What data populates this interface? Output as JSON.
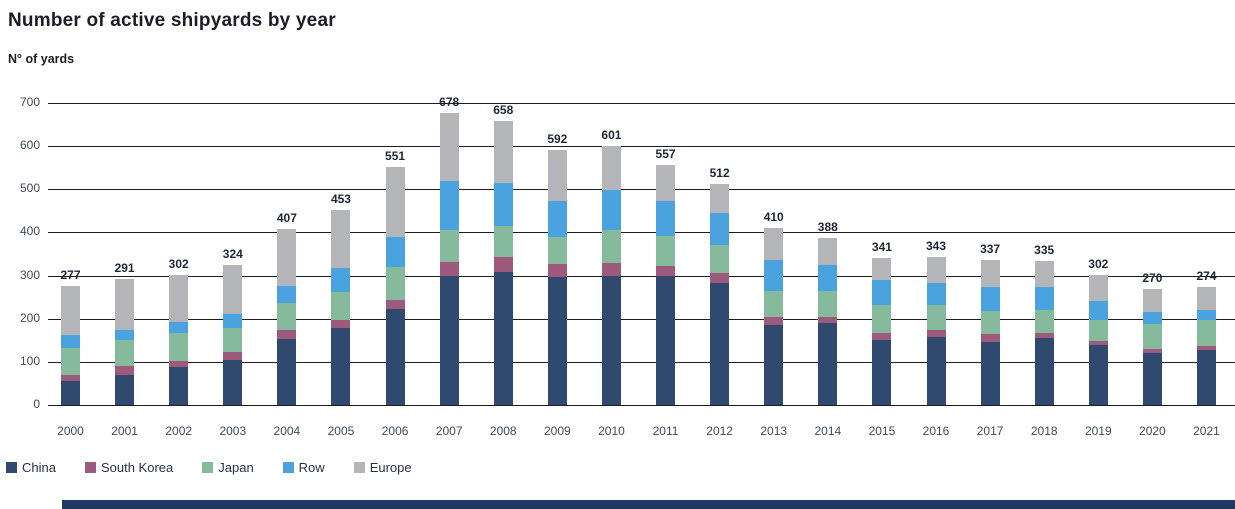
{
  "header": {
    "title": "Number of active shipyards by year",
    "y_axis_label": "N° of yards"
  },
  "colors": {
    "china": "#2f4a6e",
    "south_korea": "#9e5a7d",
    "japan": "#85bb9c",
    "row": "#4aa3de",
    "europe": "#b3b5b8",
    "gridline": "#1c1c1c",
    "footer_band": "#1f3864",
    "label_dark": "#1d2636",
    "tick_text": "#3f4a5c"
  },
  "chart_data": {
    "type": "bar",
    "stacked": true,
    "title": "Number of active shipyards by year",
    "ylabel": "N° of yards",
    "xlabel": "",
    "grid": true,
    "legend_position": "bottom",
    "ylim": [
      0,
      700
    ],
    "yticks": [
      0,
      100,
      200,
      300,
      400,
      500,
      600,
      700
    ],
    "categories": [
      "2000",
      "2001",
      "2002",
      "2003",
      "2004",
      "2005",
      "2006",
      "2007",
      "2008",
      "2009",
      "2010",
      "2011",
      "2012",
      "2013",
      "2014",
      "2015",
      "2016",
      "2017",
      "2018",
      "2019",
      "2020",
      "2021"
    ],
    "series": [
      {
        "name": "China",
        "color": "#2f4a6e",
        "values": [
          55,
          70,
          88,
          105,
          152,
          178,
          222,
          300,
          308,
          297,
          300,
          300,
          283,
          185,
          190,
          150,
          158,
          145,
          155,
          138,
          120,
          127
        ]
      },
      {
        "name": "South Korea",
        "color": "#9e5a7d",
        "values": [
          15,
          20,
          13,
          17,
          21,
          20,
          21,
          32,
          34,
          29,
          30,
          22,
          22,
          18,
          14,
          18,
          15,
          20,
          11,
          10,
          9,
          10
        ]
      },
      {
        "name": "Japan",
        "color": "#85bb9c",
        "values": [
          62,
          60,
          66,
          57,
          64,
          64,
          76,
          74,
          72,
          64,
          76,
          70,
          67,
          62,
          60,
          63,
          60,
          52,
          55,
          48,
          59,
          60
        ]
      },
      {
        "name": "Row",
        "color": "#4aa3de",
        "values": [
          30,
          23,
          26,
          32,
          39,
          55,
          70,
          113,
          101,
          82,
          92,
          80,
          74,
          72,
          60,
          58,
          49,
          56,
          53,
          44,
          27,
          23
        ]
      },
      {
        "name": "Europe",
        "color": "#b3b5b8",
        "values": [
          115,
          118,
          109,
          113,
          131,
          136,
          162,
          159,
          143,
          120,
          103,
          85,
          66,
          73,
          64,
          52,
          61,
          64,
          61,
          62,
          55,
          54
        ]
      }
    ],
    "totals": [
      277,
      291,
      302,
      324,
      407,
      453,
      551,
      678,
      658,
      592,
      601,
      557,
      512,
      410,
      388,
      341,
      343,
      337,
      335,
      302,
      270,
      274
    ]
  }
}
